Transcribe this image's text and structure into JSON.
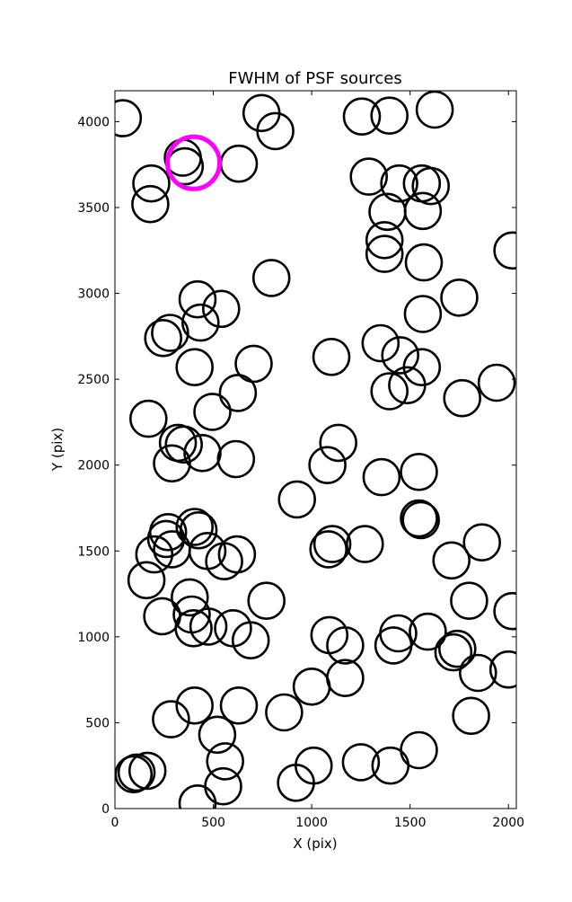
{
  "chart_data": {
    "type": "scatter",
    "title": "FWHM of PSF sources",
    "xlabel": "X (pix)",
    "ylabel": "Y (pix)",
    "xlim": [
      0,
      2040
    ],
    "ylim": [
      0,
      4180
    ],
    "xticks": [
      0,
      500,
      1000,
      1500,
      2000
    ],
    "yticks": [
      0,
      500,
      1000,
      1500,
      2000,
      2500,
      3000,
      3500,
      4000
    ],
    "grid": false,
    "marker": "open circle",
    "marker_color": "#000000",
    "highlight_color": "#ff00ff",
    "series": [
      {
        "points": [
          [
            40,
            4020
          ],
          [
            745,
            4050
          ],
          [
            815,
            3945
          ],
          [
            1255,
            4030
          ],
          [
            1395,
            4035
          ],
          [
            1625,
            4070
          ],
          [
            345,
            3790
          ],
          [
            355,
            3740
          ],
          [
            630,
            3755
          ],
          [
            185,
            3640
          ],
          [
            180,
            3520
          ],
          [
            1290,
            3680
          ],
          [
            1445,
            3640
          ],
          [
            1560,
            3640
          ],
          [
            1605,
            3625
          ],
          [
            1385,
            3475
          ],
          [
            1565,
            3480
          ],
          [
            1370,
            3310
          ],
          [
            1370,
            3230
          ],
          [
            1570,
            3180
          ],
          [
            2020,
            3250
          ],
          [
            795,
            3090
          ],
          [
            1750,
            2975
          ],
          [
            420,
            2965
          ],
          [
            540,
            2910
          ],
          [
            435,
            2830
          ],
          [
            280,
            2770
          ],
          [
            245,
            2740
          ],
          [
            1565,
            2880
          ],
          [
            1350,
            2710
          ],
          [
            1450,
            2640
          ],
          [
            1100,
            2630
          ],
          [
            705,
            2590
          ],
          [
            405,
            2570
          ],
          [
            1560,
            2570
          ],
          [
            1395,
            2430
          ],
          [
            1485,
            2465
          ],
          [
            1940,
            2480
          ],
          [
            1765,
            2390
          ],
          [
            625,
            2420
          ],
          [
            495,
            2310
          ],
          [
            170,
            2270
          ],
          [
            1135,
            2130
          ],
          [
            320,
            2130
          ],
          [
            350,
            2120
          ],
          [
            445,
            2070
          ],
          [
            615,
            2035
          ],
          [
            290,
            2010
          ],
          [
            1080,
            2000
          ],
          [
            1355,
            1930
          ],
          [
            1545,
            1960
          ],
          [
            925,
            1800
          ],
          [
            270,
            1610
          ],
          [
            405,
            1640
          ],
          [
            425,
            1620
          ],
          [
            1545,
            1690
          ],
          [
            1555,
            1680
          ],
          [
            260,
            1570
          ],
          [
            1105,
            1540
          ],
          [
            1085,
            1510
          ],
          [
            1270,
            1540
          ],
          [
            1865,
            1550
          ],
          [
            200,
            1480
          ],
          [
            290,
            1510
          ],
          [
            470,
            1500
          ],
          [
            555,
            1440
          ],
          [
            620,
            1480
          ],
          [
            1710,
            1445
          ],
          [
            160,
            1330
          ],
          [
            380,
            1230
          ],
          [
            770,
            1210
          ],
          [
            1800,
            1210
          ],
          [
            2020,
            1150
          ],
          [
            240,
            1120
          ],
          [
            390,
            1130
          ],
          [
            400,
            1050
          ],
          [
            475,
            1060
          ],
          [
            600,
            1050
          ],
          [
            690,
            980
          ],
          [
            1090,
            1010
          ],
          [
            1170,
            950
          ],
          [
            1440,
            1020
          ],
          [
            1415,
            950
          ],
          [
            1590,
            1030
          ],
          [
            1720,
            910
          ],
          [
            1740,
            930
          ],
          [
            1845,
            790
          ],
          [
            2000,
            810
          ],
          [
            1170,
            760
          ],
          [
            1000,
            710
          ],
          [
            405,
            600
          ],
          [
            630,
            600
          ],
          [
            285,
            520
          ],
          [
            860,
            560
          ],
          [
            1810,
            540
          ],
          [
            520,
            430
          ],
          [
            560,
            275
          ],
          [
            1010,
            250
          ],
          [
            1250,
            270
          ],
          [
            1400,
            250
          ],
          [
            1545,
            340
          ],
          [
            95,
            200
          ],
          [
            110,
            210
          ],
          [
            165,
            220
          ],
          [
            550,
            130
          ],
          [
            420,
            30
          ],
          [
            920,
            150
          ]
        ]
      },
      {
        "highlight": true,
        "points": [
          [
            400,
            3760
          ]
        ]
      }
    ]
  }
}
